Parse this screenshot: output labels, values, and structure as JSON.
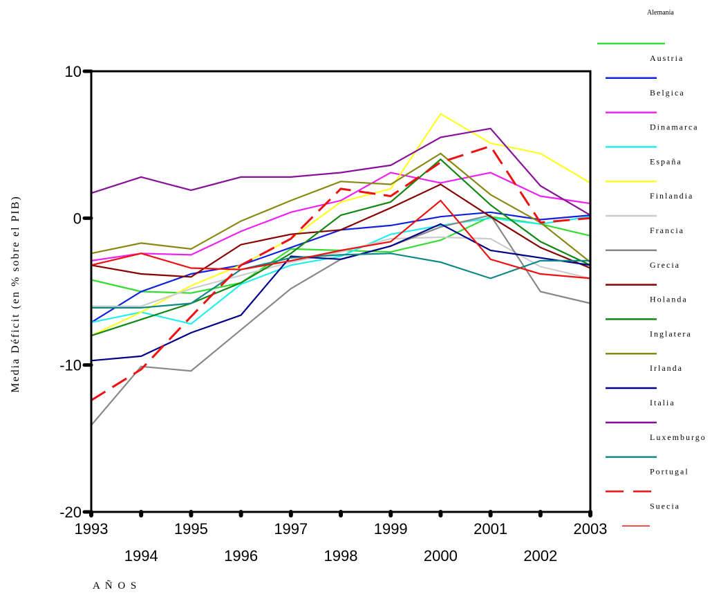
{
  "chart_data": {
    "type": "line",
    "xlabel": "A Ñ O S",
    "ylabel": "Media Déficit (en % sobre el PIB)",
    "x": [
      1993,
      1994,
      1995,
      1996,
      1997,
      1998,
      1999,
      2000,
      2001,
      2002,
      2003
    ],
    "ylim": [
      -20,
      10
    ],
    "yticks": [
      10,
      0,
      -10,
      -20
    ],
    "yticklabels": [
      "10",
      "0",
      "-10",
      "-20"
    ],
    "xtick_labels_row1": [
      "1993",
      "1995",
      "1997",
      "1999",
      "2001",
      "2003"
    ],
    "xtick_labels_row2": [
      "1994",
      "1996",
      "1998",
      "2000",
      "2002"
    ],
    "grid": false,
    "legend_position": "right",
    "series": [
      {
        "name": "Alemania",
        "color": "#33dd33",
        "dash": false,
        "values": [
          -4.2,
          -5.0,
          -5.1,
          -4.4,
          -2.1,
          -2.2,
          -2.3,
          -1.5,
          0.1,
          -0.4,
          -1.2
        ]
      },
      {
        "name": "Austria",
        "color": "#1122dd",
        "dash": false,
        "values": [
          -7.1,
          -5.0,
          -3.8,
          -3.2,
          -2.0,
          -0.8,
          -0.5,
          0.1,
          0.4,
          -0.1,
          0.2
        ]
      },
      {
        "name": "Belgica",
        "color": "#ee22ee",
        "dash": false,
        "values": [
          -2.9,
          -2.4,
          -2.5,
          -0.9,
          0.4,
          1.2,
          3.1,
          2.4,
          3.1,
          1.5,
          1.0
        ]
      },
      {
        "name": "Dinamarca",
        "color": "#22eeee",
        "dash": false,
        "values": [
          -7.1,
          -6.4,
          -7.2,
          -4.5,
          -3.2,
          -2.6,
          -1.1,
          -0.5,
          0.0,
          -0.4,
          0.1
        ]
      },
      {
        "name": "España",
        "color": "#ffff22",
        "dash": false,
        "values": [
          -8.0,
          -6.4,
          -4.6,
          -3.2,
          -1.4,
          1.1,
          2.0,
          7.1,
          5.1,
          4.4,
          2.4
        ]
      },
      {
        "name": "Finlandia",
        "color": "#cccccc",
        "dash": false,
        "values": [
          -6.0,
          -6.0,
          -4.8,
          -3.9,
          -3.0,
          -2.3,
          -1.4,
          -1.3,
          -1.4,
          -3.3,
          -4.1
        ]
      },
      {
        "name": "Francia",
        "color": "#888888",
        "dash": false,
        "values": [
          -14.1,
          -10.1,
          -10.4,
          -7.6,
          -4.8,
          -2.8,
          -1.9,
          -0.6,
          0.2,
          -5.0,
          -5.8
        ]
      },
      {
        "name": "Grecia",
        "color": "#880000",
        "dash": false,
        "values": [
          -3.2,
          -3.8,
          -4.0,
          -1.8,
          -1.1,
          -0.8,
          0.7,
          2.3,
          0.1,
          -2.0,
          -3.4
        ]
      },
      {
        "name": "Holanda",
        "color": "#118811",
        "dash": false,
        "values": [
          -8.0,
          -6.9,
          -5.8,
          -4.4,
          -2.4,
          0.2,
          1.1,
          4.0,
          0.9,
          -1.6,
          -3.2
        ]
      },
      {
        "name": "Inglatera",
        "color": "#888811",
        "dash": false,
        "values": [
          -2.4,
          -1.7,
          -2.1,
          -0.2,
          1.2,
          2.5,
          2.3,
          4.4,
          1.6,
          -0.3,
          -3.0
        ]
      },
      {
        "name": "Irlanda",
        "color": "#000088",
        "dash": false,
        "values": [
          -9.7,
          -9.4,
          -7.8,
          -6.6,
          -2.6,
          -2.8,
          -1.9,
          -0.4,
          -2.2,
          -2.7,
          -3.2
        ]
      },
      {
        "name": "Italia",
        "color": "#881199",
        "dash": false,
        "values": [
          1.7,
          2.8,
          1.9,
          2.8,
          2.8,
          3.1,
          3.6,
          5.5,
          6.1,
          2.2,
          0.2
        ]
      },
      {
        "name": "Luxemburgo",
        "color": "#118888",
        "dash": false,
        "values": [
          -6.1,
          -6.1,
          -5.8,
          -3.5,
          -2.7,
          -2.5,
          -2.4,
          -3.0,
          -4.1,
          -2.9,
          -2.9
        ]
      },
      {
        "name": "Portugal",
        "color": "#ee1111",
        "dash": true,
        "values": [
          -12.4,
          -10.3,
          -6.7,
          -3.2,
          -1.4,
          2.0,
          1.5,
          3.8,
          4.9,
          -0.3,
          0.0
        ]
      },
      {
        "name": "Suecia",
        "color": "#ee1111",
        "dash": false,
        "values": [
          -3.2,
          -2.4,
          -3.4,
          -3.5,
          -2.9,
          -2.2,
          -1.6,
          1.2,
          -2.8,
          -3.8,
          -4.1
        ]
      }
    ]
  }
}
